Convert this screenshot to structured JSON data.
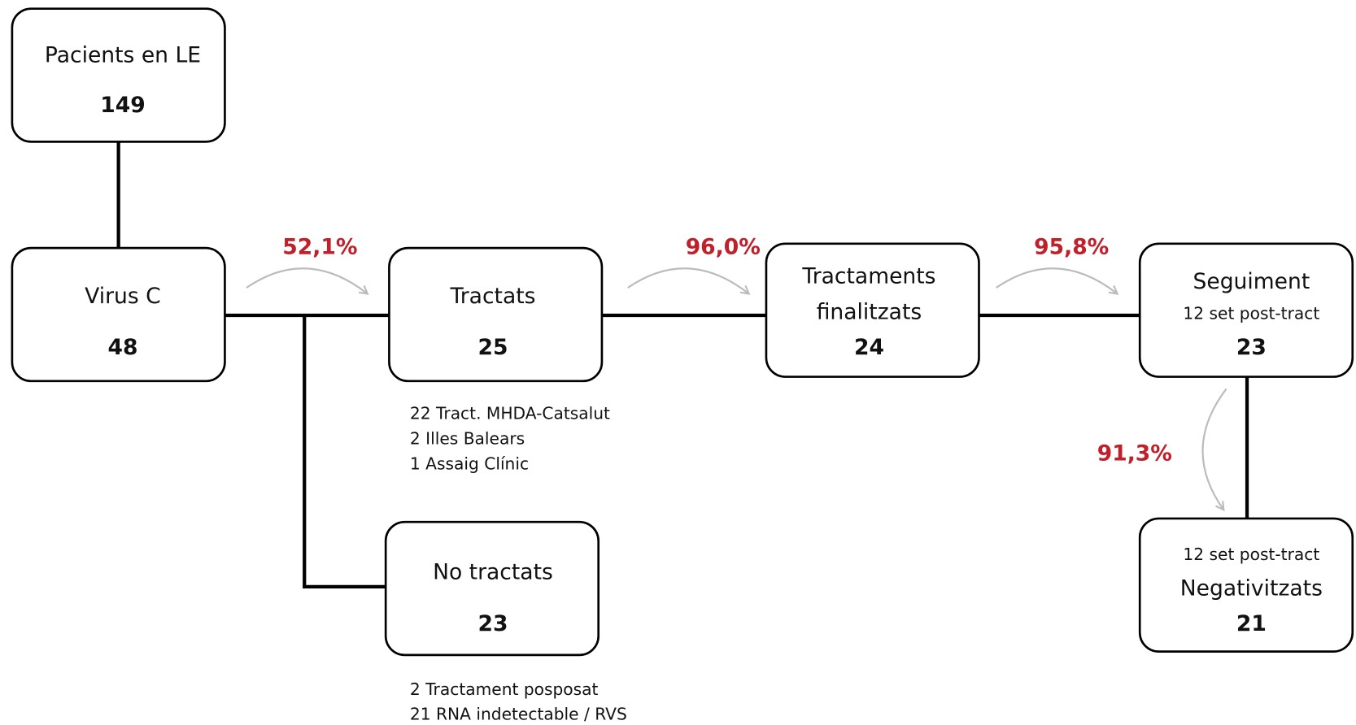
{
  "nodes": [
    {
      "label": "Pacients en LE",
      "value": "149"
    },
    {
      "label": "Virus C",
      "value": "48"
    },
    {
      "label": "Tractats",
      "value": "25"
    },
    {
      "label": [
        "Tractaments",
        "finalitzats"
      ],
      "value": "24"
    },
    {
      "label": "Seguiment",
      "sublabel": "12 set post-tract",
      "value": "23"
    },
    {
      "label": "No tractats",
      "value": "23"
    },
    {
      "sublabel": "12 set post-tract",
      "label": "Negativitzats",
      "value": "21"
    }
  ],
  "notes": {
    "tractats": [
      "22 Tract. MHDA-Catsalut",
      "2 Illes Balears",
      "1  Assaig Clínic"
    ],
    "no_tractats": [
      "2 Tractament posposat",
      "21 RNA indetectable / RVS"
    ]
  },
  "percentages": [
    "52,1%",
    "96,0%",
    "95,8%",
    "91,3%"
  ]
}
